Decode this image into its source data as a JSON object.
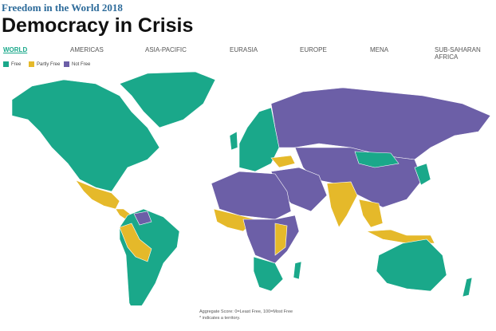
{
  "header": {
    "kicker": "Freedom in the World 2018",
    "title": "Democracy in Crisis"
  },
  "tabs": [
    "WORLD",
    "AMERICAS",
    "ASIA-PACIFIC",
    "EURASIA",
    "EUROPE",
    "MENA",
    "SUB-SAHARAN AFRICA"
  ],
  "legend": [
    {
      "label": "Free",
      "color": "#1aa88a"
    },
    {
      "label": "Partly Free",
      "color": "#e5b92a"
    },
    {
      "label": "Not Free",
      "color": "#6c5fa7"
    }
  ],
  "footnotes": [
    "Aggregate Score: 0=Least Free, 100=Most Free",
    "* indicates a territory."
  ]
}
